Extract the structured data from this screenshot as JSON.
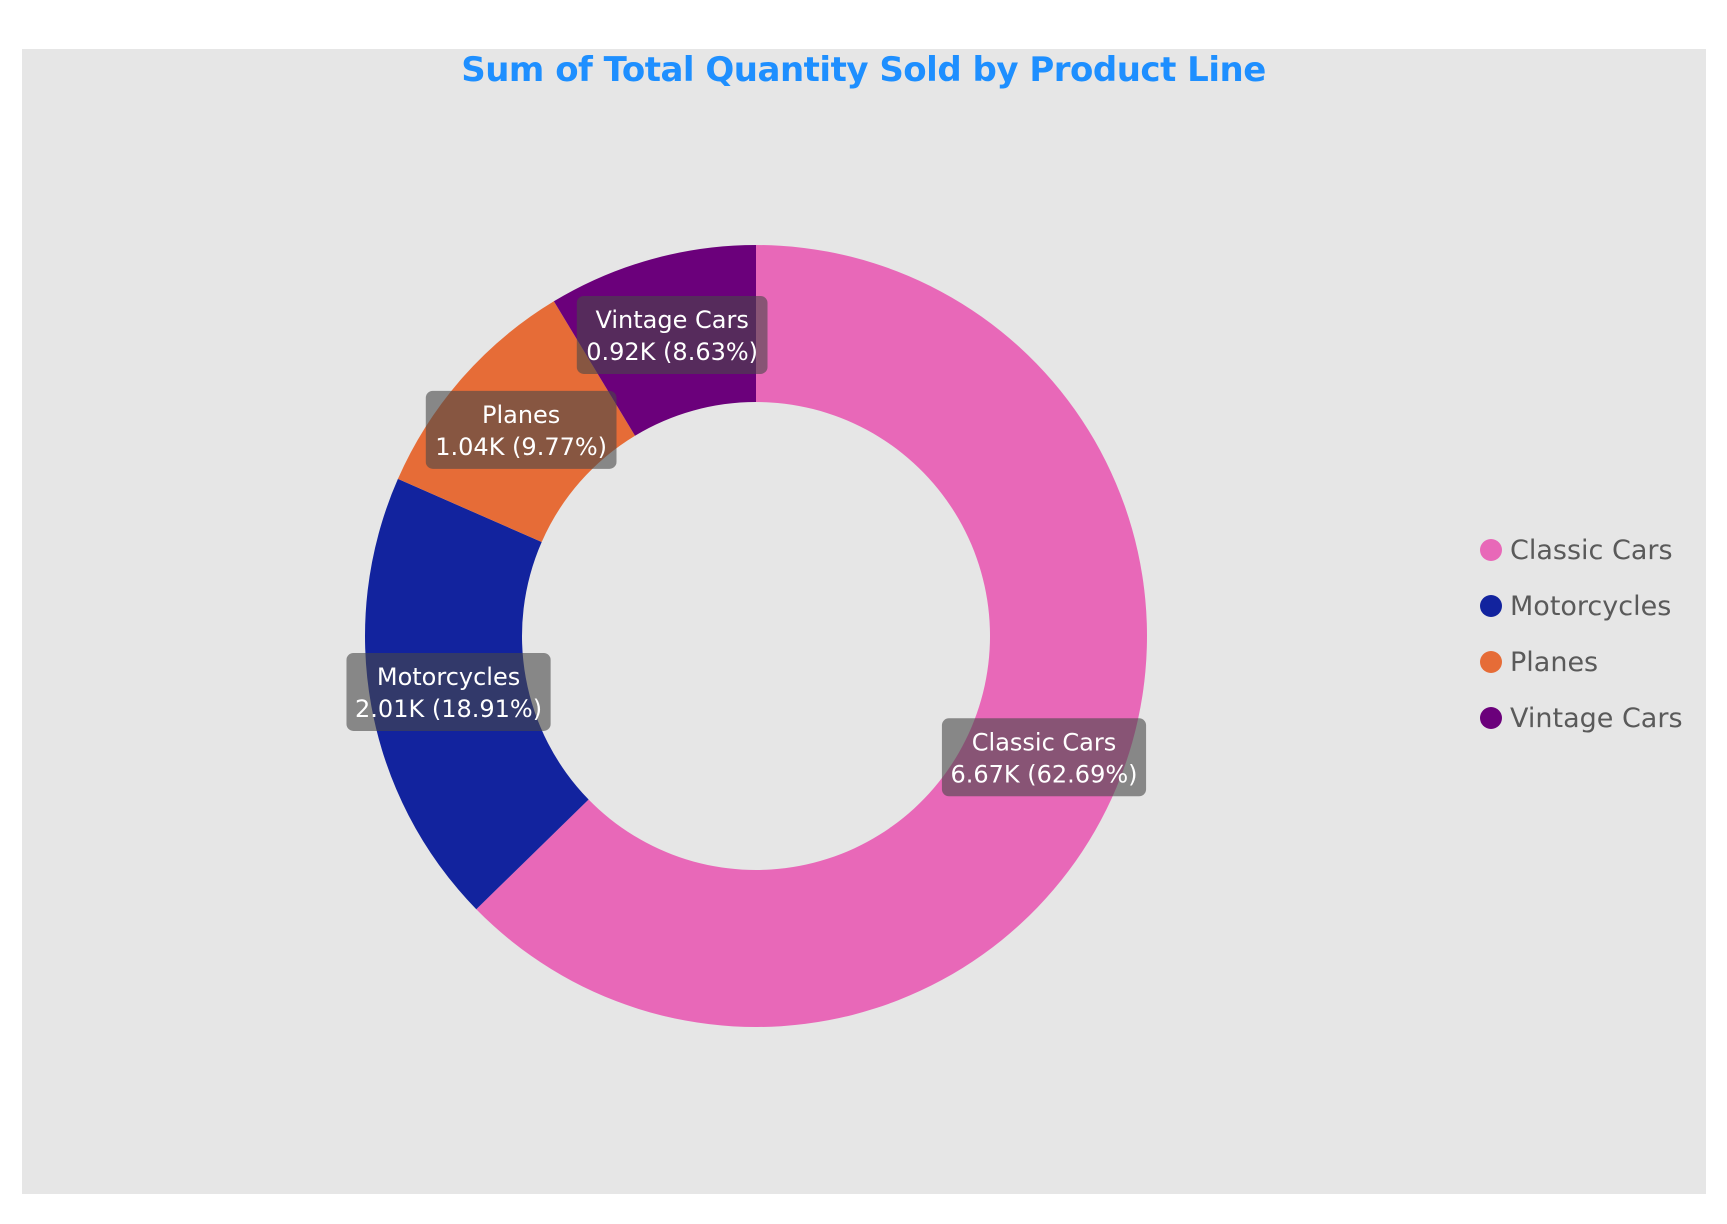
{
  "chart_data": {
    "type": "pie",
    "variant": "donut",
    "title": "Sum of Total Quantity Sold by Product Line",
    "slices": [
      {
        "name": "Classic Cars",
        "value": 6.67,
        "value_label": "6.67K",
        "percent": 62.69,
        "percent_label": "62.69%",
        "color": "#e868b8"
      },
      {
        "name": "Motorcycles",
        "value": 2.01,
        "value_label": "2.01K",
        "percent": 18.91,
        "percent_label": "18.91%",
        "color": "#12239e"
      },
      {
        "name": "Planes",
        "value": 1.04,
        "value_label": "1.04K",
        "percent": 9.77,
        "percent_label": "9.77%",
        "color": "#e66c37"
      },
      {
        "name": "Vintage Cars",
        "value": 0.92,
        "value_label": "0.92K",
        "percent": 8.63,
        "percent_label": "8.63%",
        "color": "#6b007b"
      }
    ],
    "legend_position": "right",
    "title_color": "#1e8fff",
    "background_color": "#e6e6e6"
  }
}
